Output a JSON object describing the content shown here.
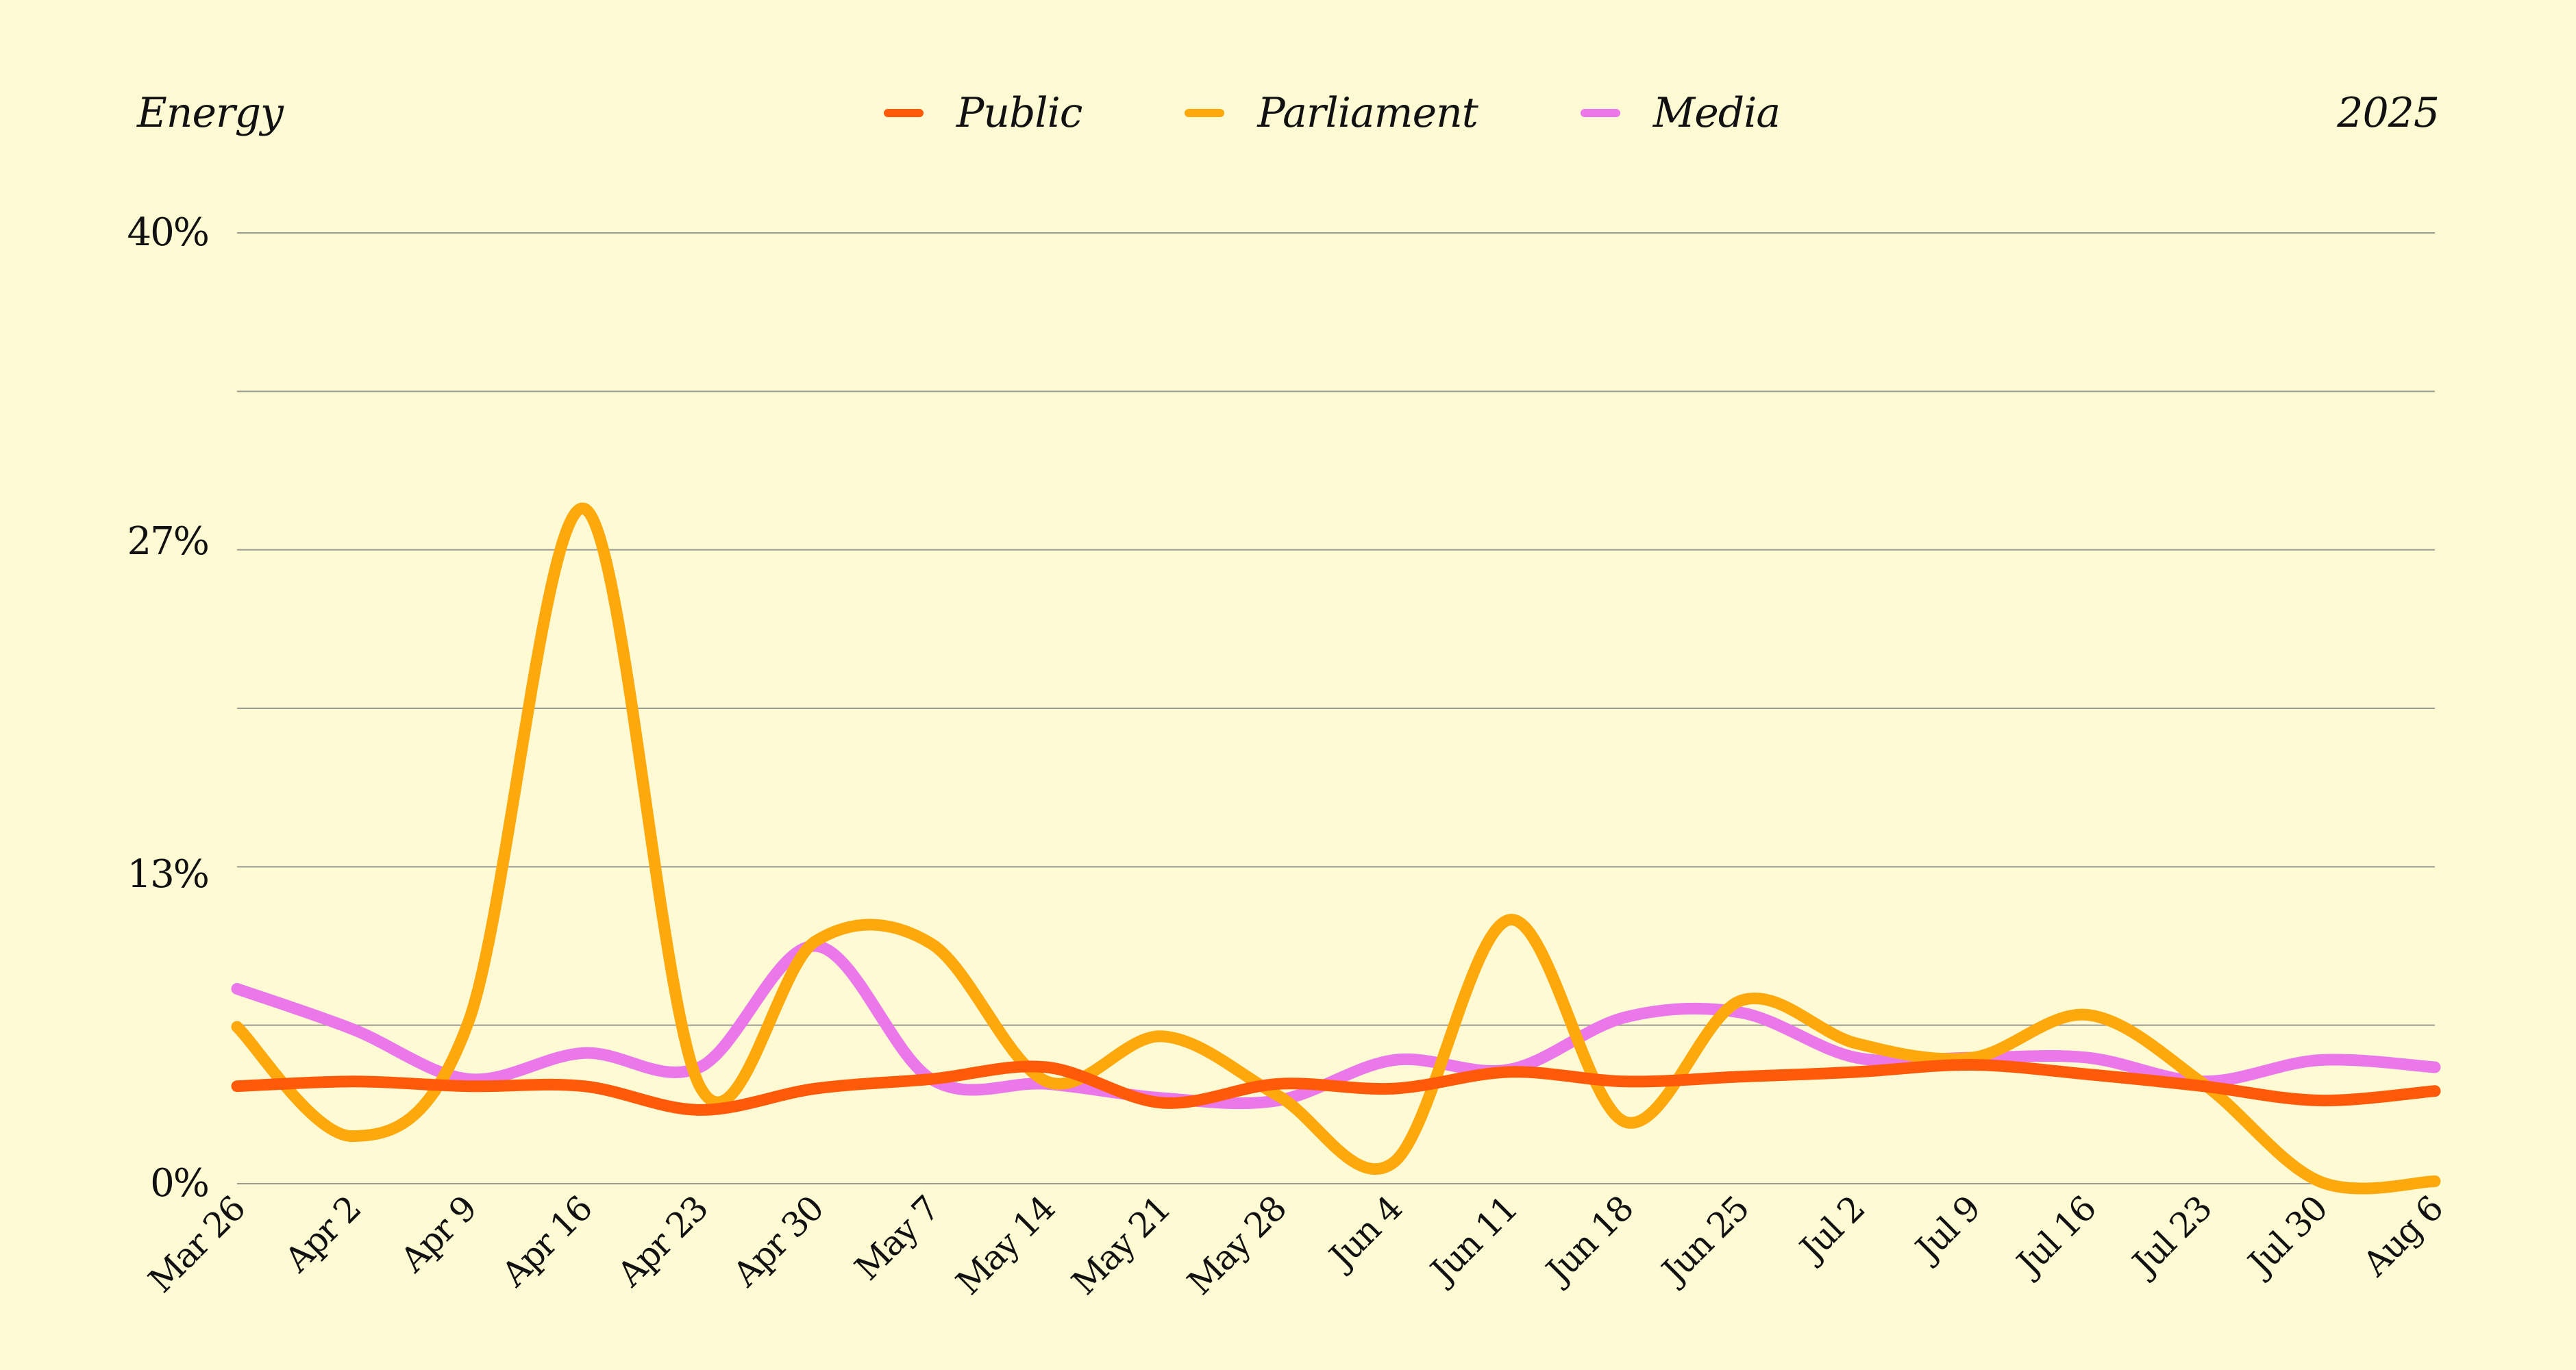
{
  "header": {
    "title": "Energy",
    "year": "2025"
  },
  "colors": {
    "background": "#fdfad4",
    "gridline": "#9a9a90",
    "text": "#111111"
  },
  "chart_data": {
    "type": "line",
    "title": "Energy",
    "subtitle": "2025",
    "xlabel": "",
    "ylabel": "",
    "categories": [
      "Mar 26",
      "Apr 2",
      "Apr 9",
      "Apr 16",
      "Apr 23",
      "Apr 30",
      "May 7",
      "May 14",
      "May 21",
      "May 28",
      "Jun 4",
      "Jun 11",
      "Jun 18",
      "Jun 25",
      "Jul 2",
      "Jul 9",
      "Jul 16",
      "Jul 23",
      "Jul 30",
      "Aug 6"
    ],
    "ylim": [
      0,
      40
    ],
    "yticks": [
      0,
      13,
      27,
      40
    ],
    "ytick_labels": [
      "0%",
      "13%",
      "27%",
      "40%"
    ],
    "grid": true,
    "legend_position": "top-center",
    "series": [
      {
        "name": "Public",
        "color": "#ff5a0a",
        "values": [
          4.1,
          4.3,
          4.1,
          4.1,
          3.1,
          4.0,
          4.4,
          4.9,
          3.4,
          4.2,
          4.0,
          4.7,
          4.3,
          4.5,
          4.7,
          5.0,
          4.6,
          4.1,
          3.5,
          3.9
        ]
      },
      {
        "name": "Parliament",
        "color": "#fda90d",
        "values": [
          6.6,
          2.0,
          6.8,
          28.4,
          4.1,
          10.2,
          10.1,
          4.3,
          6.2,
          3.7,
          0.9,
          11.1,
          2.6,
          7.7,
          5.9,
          5.3,
          7.1,
          4.2,
          0.1,
          0.1
        ]
      },
      {
        "name": "Media",
        "color": "#ea78ea",
        "values": [
          8.2,
          6.5,
          4.4,
          5.5,
          4.9,
          10.0,
          4.4,
          4.2,
          3.6,
          3.5,
          5.2,
          4.8,
          7.0,
          7.2,
          5.3,
          5.3,
          5.3,
          4.3,
          5.2,
          4.9
        ]
      }
    ]
  }
}
